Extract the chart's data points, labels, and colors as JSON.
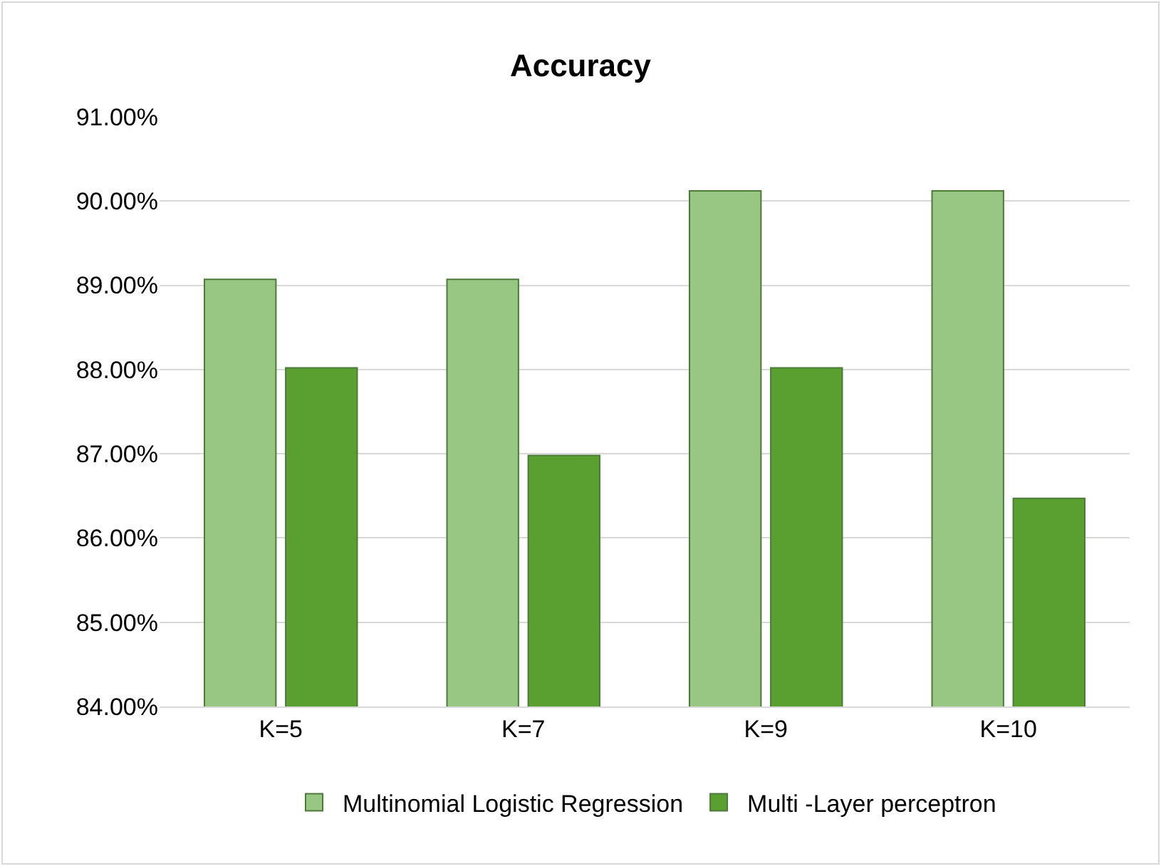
{
  "chart_data": {
    "type": "bar",
    "title": "Accuracy",
    "categories": [
      "K=5",
      "K=7",
      "K=9",
      "K=10"
    ],
    "series": [
      {
        "name": "Multinomial Logistic Regression",
        "color": "#98c784",
        "values": [
          89.07,
          89.07,
          90.12,
          90.12
        ]
      },
      {
        "name": "Multi -Layer perceptron",
        "color": "#5aa031",
        "values": [
          88.02,
          86.98,
          88.02,
          86.47
        ]
      }
    ],
    "ylim": [
      84,
      91
    ],
    "yticks": [
      {
        "value": 84,
        "label": "84.00%"
      },
      {
        "value": 85,
        "label": "85.00%"
      },
      {
        "value": 86,
        "label": "86.00%"
      },
      {
        "value": 87,
        "label": "87.00%"
      },
      {
        "value": 88,
        "label": "88.00%"
      },
      {
        "value": 89,
        "label": "89.00%"
      },
      {
        "value": 90,
        "label": "90.00%"
      },
      {
        "value": 91,
        "label": "91.00%"
      }
    ],
    "grid": "y",
    "legend": "bottom"
  }
}
